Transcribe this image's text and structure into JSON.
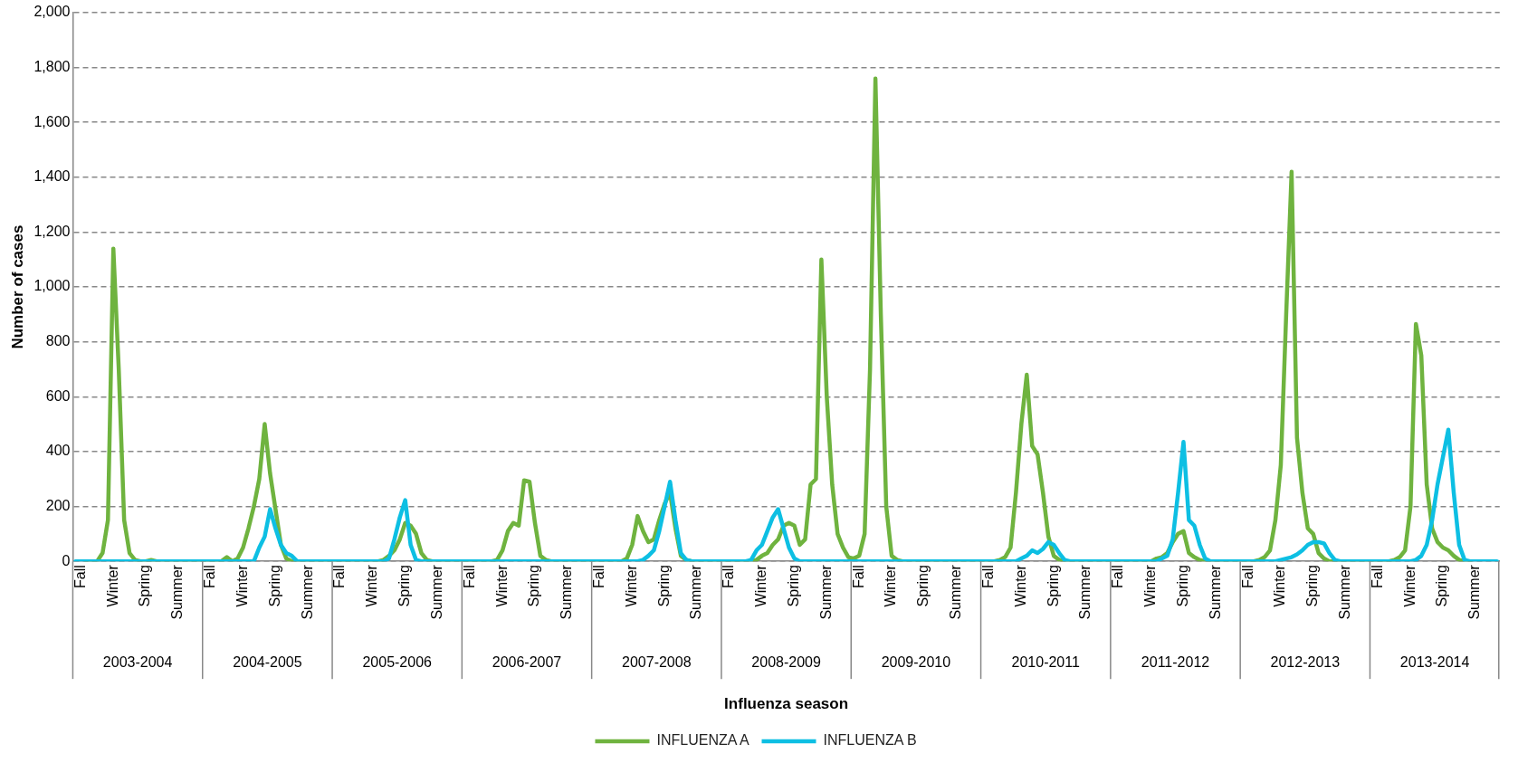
{
  "chart_data": {
    "type": "line",
    "xlabel": "Influenza season",
    "ylabel": "Number of cases",
    "ylim": [
      0,
      2000
    ],
    "yticks": [
      0,
      200,
      400,
      600,
      800,
      {
        "value": 1000,
        "label": "1,000"
      },
      {
        "value": 1200,
        "label": "1,200"
      },
      {
        "value": 1400,
        "label": "1,400"
      },
      {
        "value": 1600,
        "label": "1,600"
      },
      {
        "value": 1800,
        "label": "1,800"
      },
      {
        "value": 2000,
        "label": "2,000"
      }
    ],
    "grid": "y",
    "legend": "bottom",
    "marker": "none",
    "line_style": "solid",
    "categories": [
      null,
      "Fall",
      null,
      null,
      null,
      null,
      null,
      "Winter",
      null,
      null,
      null,
      null,
      null,
      "Spring",
      null,
      null,
      null,
      null,
      null,
      "Summer",
      null,
      null,
      null,
      null,
      null,
      "Fall",
      null,
      null,
      null,
      null,
      null,
      "Winter",
      null,
      null,
      null,
      null,
      null,
      "Spring",
      null,
      null,
      null,
      null,
      null,
      "Summer",
      null,
      null,
      null,
      null,
      null,
      "Fall",
      null,
      null,
      null,
      null,
      null,
      "Winter",
      null,
      null,
      null,
      null,
      null,
      "Spring",
      null,
      null,
      null,
      null,
      null,
      "Summer",
      null,
      null,
      null,
      null,
      null,
      "Fall",
      null,
      null,
      null,
      null,
      null,
      "Winter",
      null,
      null,
      null,
      null,
      null,
      "Spring",
      null,
      null,
      null,
      null,
      null,
      "Summer",
      null,
      null,
      null,
      null,
      null,
      "Fall",
      null,
      null,
      null,
      null,
      null,
      "Winter",
      null,
      null,
      null,
      null,
      null,
      "Spring",
      null,
      null,
      null,
      null,
      null,
      "Summer",
      null,
      null,
      null,
      null,
      null,
      "Fall",
      null,
      null,
      null,
      null,
      null,
      "Winter",
      null,
      null,
      null,
      null,
      null,
      "Spring",
      null,
      null,
      null,
      null,
      null,
      "Summer",
      null,
      null,
      null,
      null,
      null,
      "Fall",
      null,
      null,
      null,
      null,
      null,
      "Winter",
      null,
      null,
      null,
      null,
      null,
      "Spring",
      null,
      null,
      null,
      null,
      null,
      "Summer",
      null,
      null,
      null,
      null,
      null,
      "Fall",
      null,
      null,
      null,
      null,
      null,
      "Winter",
      null,
      null,
      null,
      null,
      null,
      "Spring",
      null,
      null,
      null,
      null,
      null,
      "Summer",
      null,
      null,
      null,
      null,
      null,
      "Fall",
      null,
      null,
      null,
      null,
      null,
      "Winter",
      null,
      null,
      null,
      null,
      null,
      "Spring",
      null,
      null,
      null,
      null,
      null,
      "Summer",
      null,
      null,
      null,
      null,
      null,
      "Fall",
      null,
      null,
      null,
      null,
      null,
      "Winter",
      null,
      null,
      null,
      null,
      null,
      "Spring",
      null,
      null,
      null,
      null,
      null,
      "Summer",
      null,
      null,
      null,
      null,
      null,
      "Fall",
      null,
      null,
      null,
      null,
      null,
      "Winter",
      null,
      null,
      null,
      null,
      null,
      "Spring",
      null,
      null,
      null,
      null,
      null,
      "Summer",
      null,
      null,
      null,
      null
    ],
    "series": [
      {
        "name": "INFLUENZA A",
        "color": "#6fb33f",
        "values": [
          null,
          null,
          0,
          0,
          0,
          30,
          150,
          1140,
          700,
          150,
          30,
          5,
          0,
          0,
          5,
          0,
          0,
          0,
          0,
          0,
          0,
          0,
          0,
          0,
          0,
          0,
          0,
          0,
          15,
          0,
          10,
          50,
          120,
          200,
          300,
          500,
          320,
          190,
          60,
          10,
          0,
          0,
          0,
          0,
          0,
          0,
          0,
          0,
          0,
          0,
          0,
          0,
          0,
          0,
          0,
          0,
          0,
          5,
          20,
          40,
          80,
          140,
          130,
          100,
          30,
          5,
          0,
          0,
          0,
          0,
          0,
          0,
          0,
          0,
          0,
          0,
          0,
          0,
          5,
          40,
          110,
          140,
          130,
          295,
          290,
          140,
          20,
          5,
          0,
          0,
          0,
          0,
          0,
          0,
          0,
          0,
          0,
          0,
          0,
          0,
          0,
          0,
          10,
          60,
          165,
          110,
          70,
          80,
          150,
          210,
          250,
          120,
          20,
          5,
          0,
          0,
          0,
          0,
          0,
          0,
          0,
          0,
          0,
          0,
          0,
          0,
          5,
          20,
          30,
          60,
          80,
          130,
          140,
          130,
          60,
          80,
          280,
          300,
          1100,
          600,
          280,
          100,
          50,
          15,
          10,
          20,
          100,
          700,
          1760,
          900,
          200,
          20,
          5,
          0,
          0,
          0,
          0,
          0,
          0,
          0,
          0,
          0,
          0,
          0,
          0,
          0,
          0,
          0,
          0,
          0,
          0,
          5,
          15,
          50,
          250,
          500,
          680,
          420,
          390,
          250,
          90,
          20,
          5,
          0,
          0,
          0,
          0,
          0,
          0,
          0,
          0,
          0,
          0,
          0,
          0,
          0,
          0,
          0,
          0,
          0,
          10,
          15,
          30,
          70,
          100,
          110,
          30,
          15,
          5,
          0,
          0,
          0,
          0,
          0,
          0,
          0,
          0,
          0,
          0,
          5,
          15,
          40,
          150,
          350,
          900,
          1420,
          450,
          250,
          120,
          100,
          30,
          10,
          0,
          0,
          0,
          0,
          0,
          0,
          0,
          0,
          0,
          0,
          0,
          0,
          5,
          15,
          40,
          200,
          865,
          750,
          280,
          120,
          70,
          50,
          40,
          20,
          5,
          0,
          0,
          null,
          null,
          null,
          null,
          null
        ]
      },
      {
        "name": "INFLUENZA B",
        "color": "#0dbfe3",
        "values": [
          0,
          0,
          0,
          0,
          0,
          0,
          0,
          0,
          0,
          0,
          0,
          0,
          0,
          0,
          0,
          0,
          0,
          0,
          0,
          0,
          0,
          0,
          0,
          0,
          0,
          0,
          0,
          0,
          0,
          0,
          0,
          0,
          0,
          0,
          50,
          90,
          190,
          120,
          60,
          30,
          20,
          0,
          0,
          0,
          0,
          0,
          0,
          0,
          0,
          0,
          0,
          0,
          0,
          0,
          0,
          0,
          0,
          0,
          10,
          80,
          160,
          223,
          60,
          5,
          0,
          0,
          0,
          0,
          0,
          0,
          0,
          0,
          0,
          0,
          0,
          0,
          0,
          0,
          0,
          0,
          0,
          0,
          0,
          0,
          0,
          0,
          0,
          0,
          0,
          0,
          0,
          0,
          0,
          0,
          0,
          0,
          0,
          0,
          0,
          0,
          0,
          0,
          0,
          0,
          0,
          5,
          20,
          40,
          110,
          200,
          290,
          150,
          30,
          5,
          0,
          0,
          0,
          0,
          0,
          0,
          0,
          0,
          0,
          0,
          0,
          5,
          40,
          60,
          110,
          160,
          190,
          120,
          50,
          10,
          0,
          0,
          0,
          0,
          0,
          0,
          0,
          0,
          0,
          0,
          0,
          0,
          0,
          0,
          0,
          0,
          0,
          0,
          0,
          0,
          0,
          0,
          0,
          0,
          0,
          0,
          0,
          0,
          0,
          0,
          0,
          0,
          0,
          0,
          0,
          0,
          0,
          0,
          0,
          0,
          0,
          10,
          20,
          40,
          30,
          45,
          70,
          60,
          30,
          5,
          0,
          0,
          0,
          0,
          0,
          0,
          0,
          0,
          0,
          0,
          0,
          0,
          0,
          0,
          0,
          0,
          0,
          10,
          20,
          80,
          250,
          435,
          150,
          130,
          60,
          10,
          0,
          0,
          0,
          0,
          0,
          0,
          0,
          0,
          0,
          0,
          0,
          0,
          0,
          5,
          10,
          15,
          25,
          40,
          60,
          70,
          70,
          65,
          30,
          5,
          0,
          0,
          0,
          0,
          0,
          0,
          0,
          0,
          0,
          0,
          0,
          0,
          0,
          0,
          5,
          20,
          60,
          150,
          280,
          380,
          480,
          250,
          60,
          5,
          0,
          0,
          0,
          0,
          0,
          0
        ]
      }
    ],
    "annotations": [
      "2003-2004",
      "2004-2005",
      "2005-2006",
      "2006-2007",
      "2007-2008",
      "2008-2009",
      "2009-2010",
      "2010-2011",
      "2011-2012",
      "2012-2013",
      "2013-2014"
    ]
  }
}
